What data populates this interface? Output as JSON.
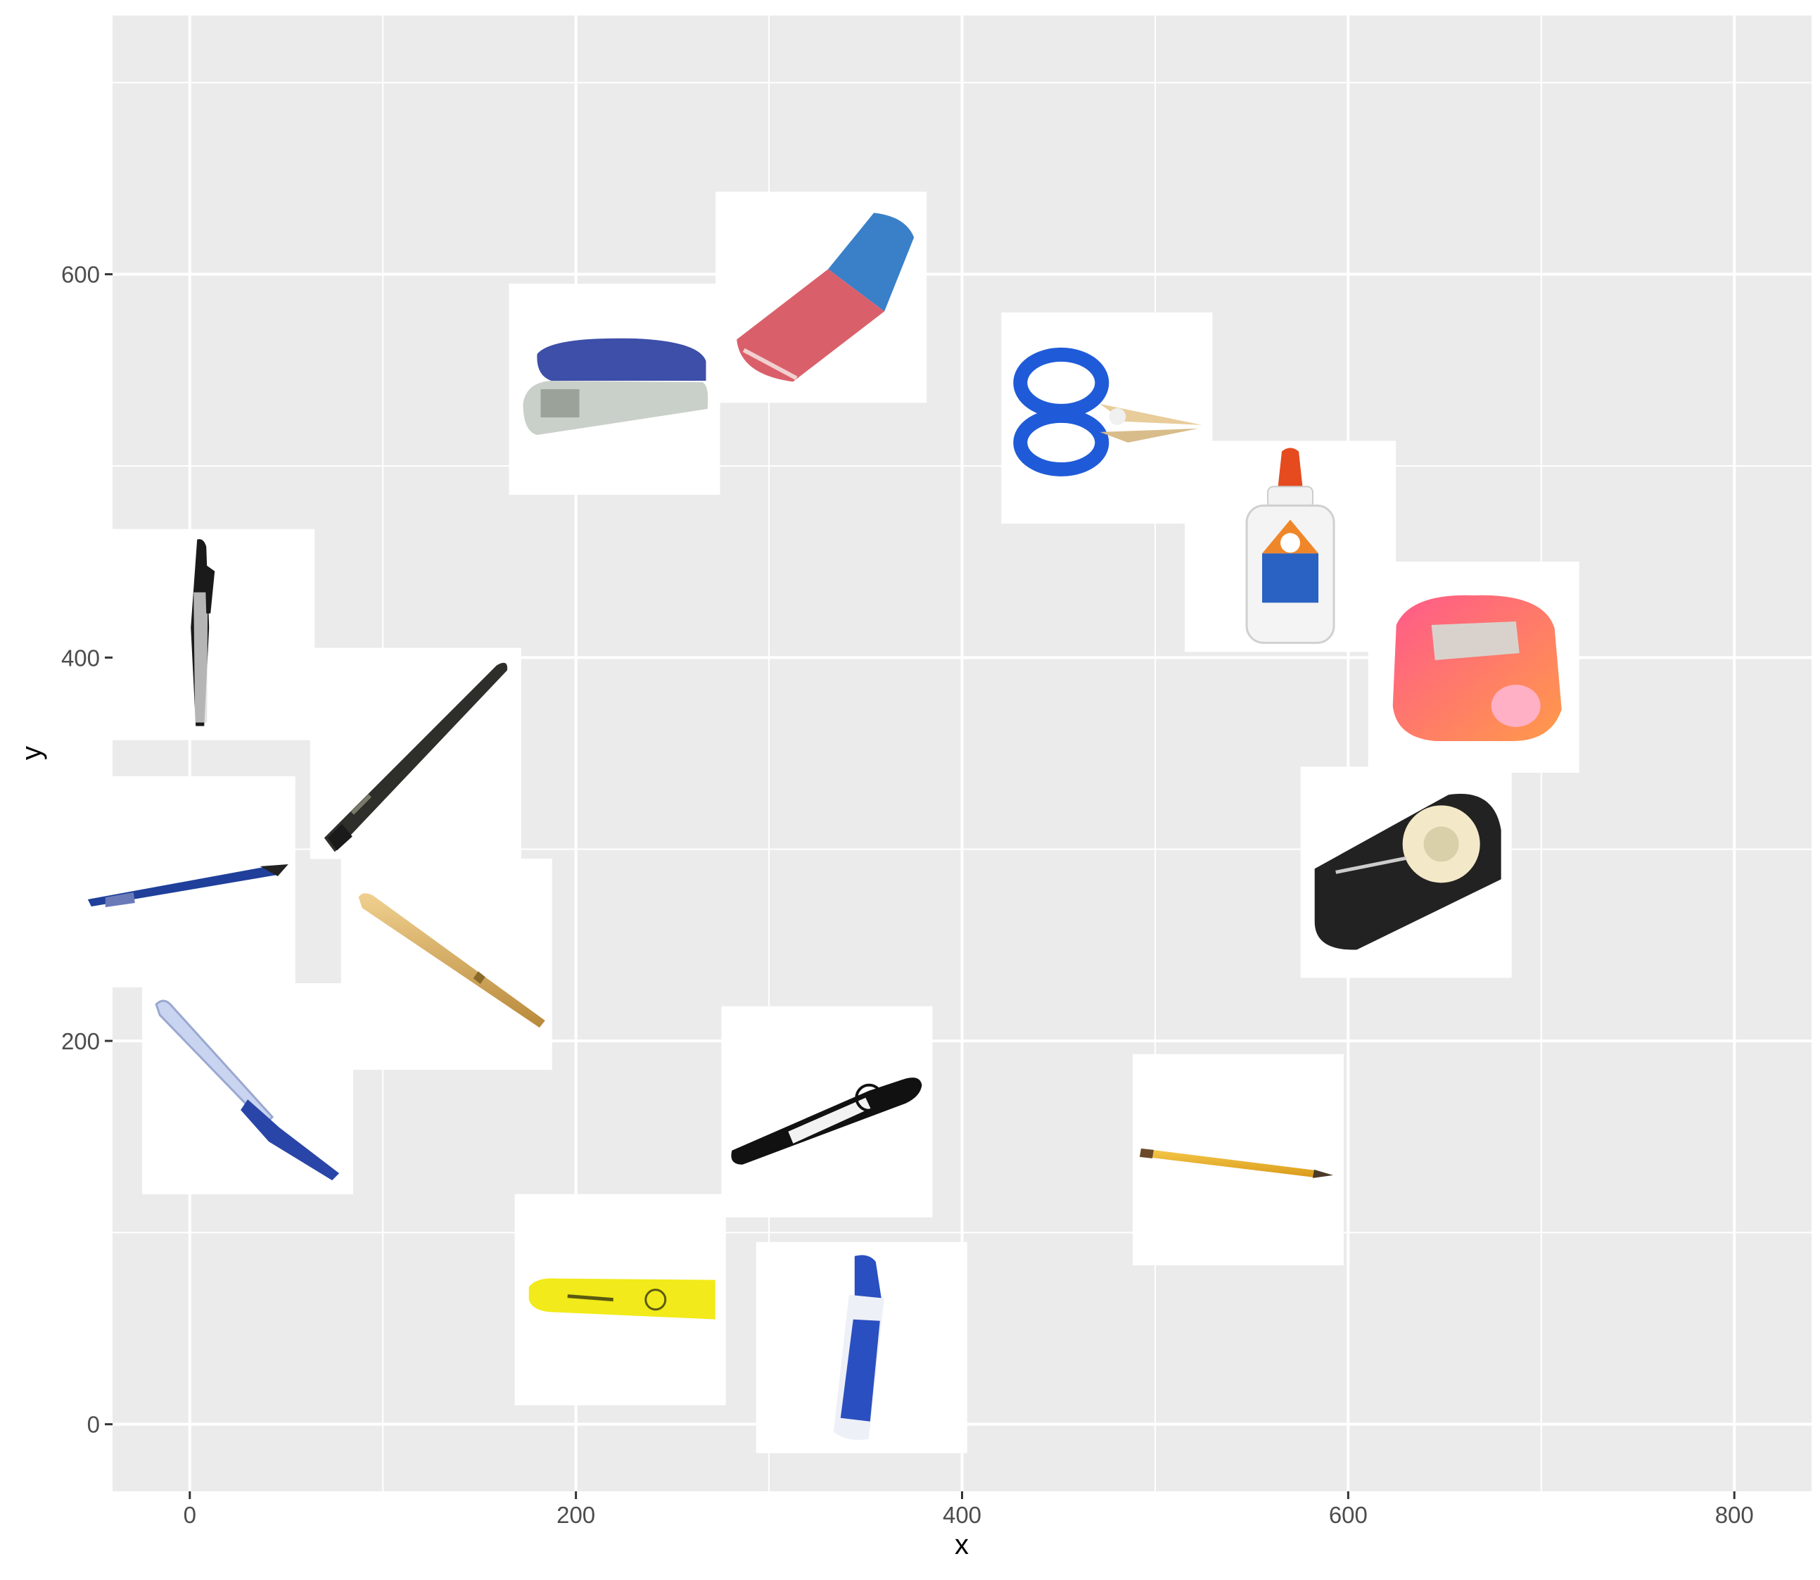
{
  "chart_data": {
    "type": "scatter",
    "title": "",
    "xlabel": "x",
    "ylabel": "y",
    "xlim": [
      -40,
      840
    ],
    "ylim": [
      -35,
      735
    ],
    "x_ticks": [
      0,
      200,
      400,
      600,
      800
    ],
    "y_ticks": [
      0,
      200,
      400,
      600
    ],
    "grid": true,
    "legend": "none",
    "colors": {
      "panel": "#ebebeb",
      "grid": "#ffffff",
      "tick": "#333333",
      "tick_label": "#4d4d4d",
      "tile": "#ffffff"
    },
    "points": [
      {
        "item": "stapler-icon",
        "x": 220,
        "y": 540
      },
      {
        "item": "eraser-icon",
        "x": 327,
        "y": 588
      },
      {
        "item": "scissors-icon",
        "x": 475,
        "y": 525
      },
      {
        "item": "glue-bottle-icon",
        "x": 570,
        "y": 458
      },
      {
        "item": "pencil-sharpener-icon",
        "x": 665,
        "y": 395
      },
      {
        "item": "tape-dispenser-icon",
        "x": 630,
        "y": 288
      },
      {
        "item": "pencil-icon",
        "x": 543,
        "y": 138
      },
      {
        "item": "marker-icon",
        "x": 330,
        "y": 163
      },
      {
        "item": "dry-erase-marker-icon",
        "x": 348,
        "y": 40
      },
      {
        "item": "highlighter-icon",
        "x": 223,
        "y": 65
      },
      {
        "item": "black-pen-icon",
        "x": 10,
        "y": 412
      },
      {
        "item": "dark-pen-icon",
        "x": 117,
        "y": 350
      },
      {
        "item": "blue-pen-icon",
        "x": 0,
        "y": 283
      },
      {
        "item": "gold-pen-icon",
        "x": 133,
        "y": 240
      },
      {
        "item": "ballpoint-pen-icon",
        "x": 30,
        "y": 175
      }
    ]
  }
}
